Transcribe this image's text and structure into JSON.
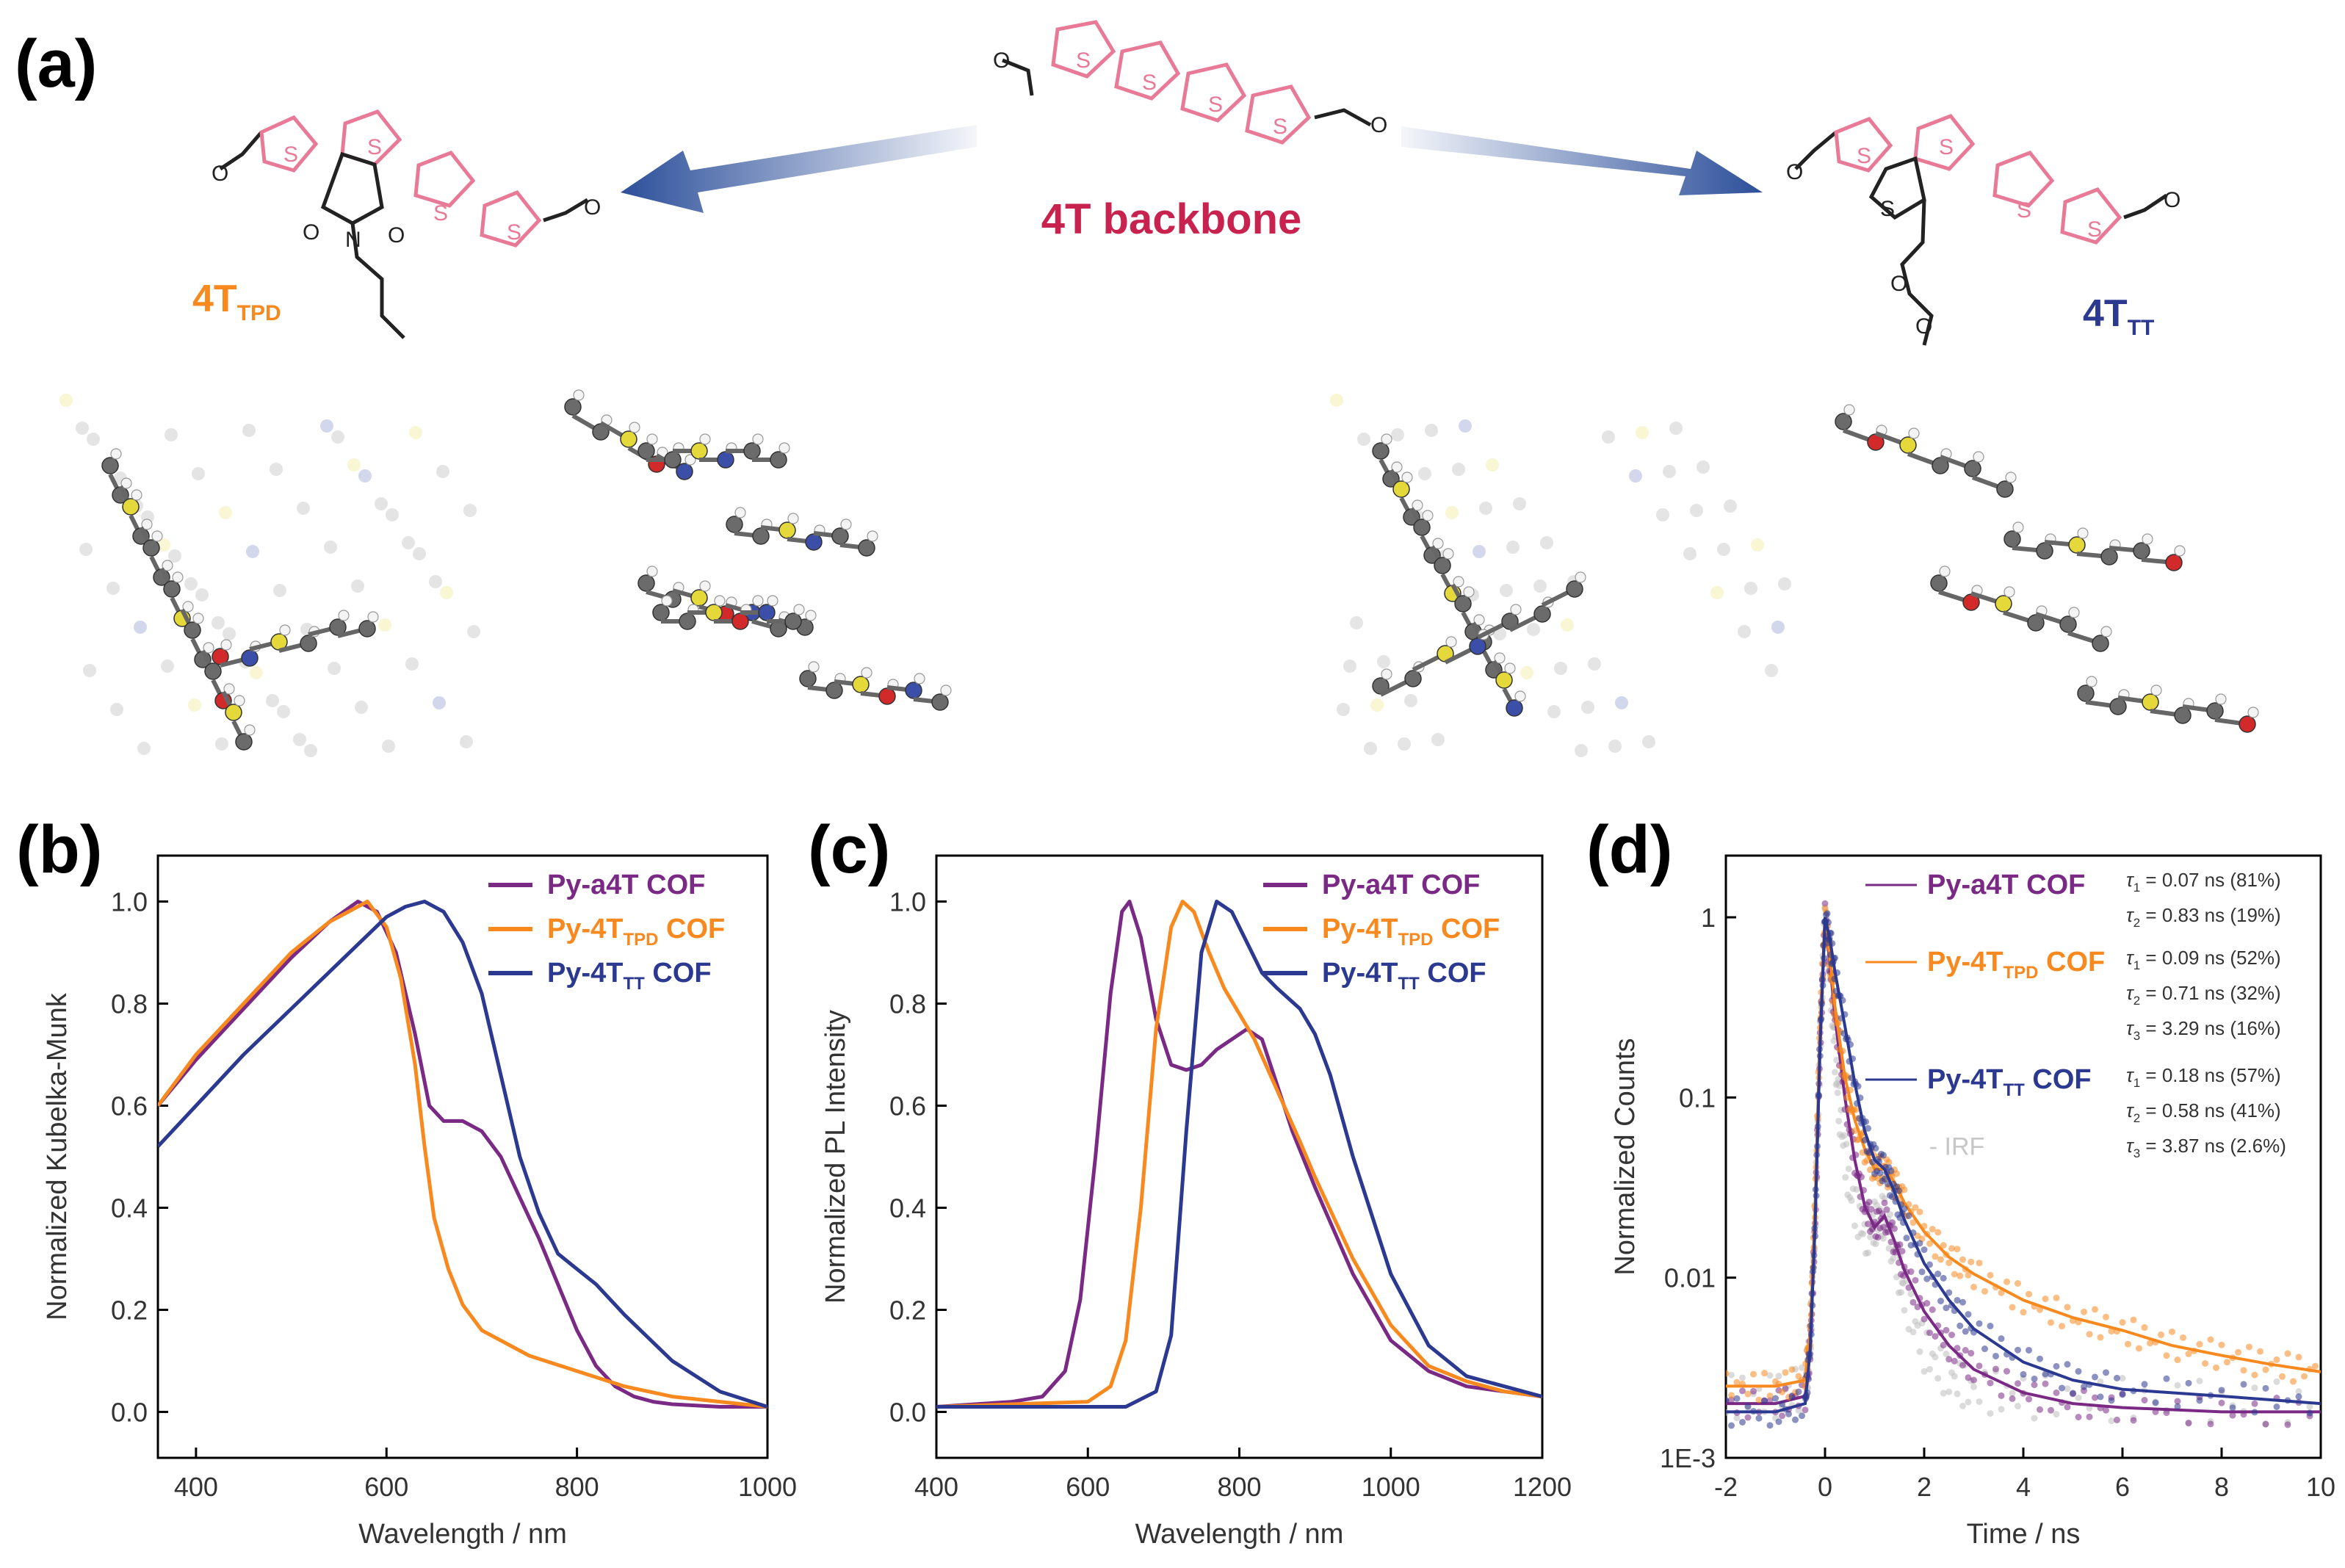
{
  "colors": {
    "purple": "#7a2a85",
    "orange": "#f7891f",
    "navy": "#2b3990",
    "crimson": "#c8234f",
    "pink": "#e87a98",
    "gray": "#bdbdbd",
    "arrow": "#2c4f9a"
  },
  "panel_a": {
    "label": "(a)",
    "backbone_label": "4T backbone",
    "mol_tpd": {
      "base": "4T",
      "sub": "TPD"
    },
    "mol_tt": {
      "base": "4T",
      "sub": "TT"
    },
    "atom_s": "S",
    "atom_n": "N",
    "atom_o": "O"
  },
  "chart_data": [
    {
      "panel": "(b)",
      "type": "line",
      "xlabel": "Wavelength / nm",
      "ylabel": "Normalized Kubelka-Munk",
      "xlim": [
        360,
        1000
      ],
      "ylim": [
        -0.09,
        1.09
      ],
      "xticks": [
        400,
        600,
        800,
        1000
      ],
      "yticks": [
        0.0,
        0.2,
        0.4,
        0.6,
        0.8,
        1.0
      ],
      "ytick_labels": [
        "0.0",
        "0.2",
        "0.4",
        "0.6",
        "0.8",
        "1.0"
      ],
      "legend": [
        {
          "base": "Py-a4T",
          "sub": "",
          "tail": " COF",
          "color": "#7a2a85"
        },
        {
          "base": "Py-4T",
          "sub": "TPD",
          "tail": " COF",
          "color": "#f7891f"
        },
        {
          "base": "Py-4T",
          "sub": "TT",
          "tail": " COF",
          "color": "#2b3990"
        }
      ],
      "series": [
        {
          "name": "Py-a4T COF",
          "color": "#7a2a85",
          "x": [
            360,
            400,
            450,
            500,
            540,
            570,
            590,
            610,
            630,
            645,
            660,
            680,
            700,
            720,
            740,
            760,
            780,
            800,
            820,
            840,
            860,
            880,
            900,
            950,
            1000
          ],
          "y": [
            0.6,
            0.69,
            0.79,
            0.89,
            0.96,
            1.0,
            0.98,
            0.9,
            0.74,
            0.6,
            0.57,
            0.57,
            0.55,
            0.5,
            0.42,
            0.34,
            0.25,
            0.16,
            0.09,
            0.05,
            0.03,
            0.02,
            0.015,
            0.01,
            0.01
          ]
        },
        {
          "name": "Py-4TTPD COF",
          "color": "#f7891f",
          "x": [
            360,
            400,
            450,
            500,
            540,
            570,
            580,
            600,
            615,
            630,
            640,
            650,
            665,
            680,
            700,
            750,
            800,
            850,
            900,
            950,
            1000
          ],
          "y": [
            0.6,
            0.7,
            0.8,
            0.9,
            0.96,
            0.99,
            1.0,
            0.95,
            0.85,
            0.68,
            0.52,
            0.38,
            0.28,
            0.21,
            0.16,
            0.11,
            0.08,
            0.05,
            0.03,
            0.02,
            0.01
          ]
        },
        {
          "name": "Py-4TTT COF",
          "color": "#2b3990",
          "x": [
            360,
            400,
            450,
            500,
            550,
            600,
            620,
            640,
            660,
            680,
            700,
            720,
            740,
            760,
            780,
            800,
            820,
            850,
            900,
            950,
            1000
          ],
          "y": [
            0.52,
            0.6,
            0.7,
            0.79,
            0.88,
            0.97,
            0.99,
            1.0,
            0.98,
            0.92,
            0.82,
            0.66,
            0.5,
            0.39,
            0.31,
            0.28,
            0.25,
            0.19,
            0.1,
            0.04,
            0.01
          ]
        }
      ]
    },
    {
      "panel": "(c)",
      "type": "line",
      "xlabel": "Wavelength / nm",
      "ylabel": "Normalized PL Intensity",
      "xlim": [
        400,
        1200
      ],
      "ylim": [
        -0.09,
        1.09
      ],
      "xticks": [
        400,
        600,
        800,
        1000,
        1200
      ],
      "yticks": [
        0.0,
        0.2,
        0.4,
        0.6,
        0.8,
        1.0
      ],
      "ytick_labels": [
        "0.0",
        "0.2",
        "0.4",
        "0.6",
        "0.8",
        "1.0"
      ],
      "legend": [
        {
          "base": "Py-a4T",
          "sub": "",
          "tail": " COF",
          "color": "#7a2a85"
        },
        {
          "base": "Py-4T",
          "sub": "TPD",
          "tail": " COF",
          "color": "#f7891f"
        },
        {
          "base": "Py-4T",
          "sub": "TT",
          "tail": " COF",
          "color": "#2b3990"
        }
      ],
      "series": [
        {
          "name": "Py-a4T COF",
          "color": "#7a2a85",
          "x": [
            400,
            500,
            540,
            570,
            590,
            610,
            630,
            645,
            655,
            670,
            690,
            710,
            730,
            750,
            770,
            790,
            810,
            830,
            850,
            870,
            900,
            950,
            1000,
            1050,
            1100,
            1150,
            1200
          ],
          "y": [
            0.01,
            0.02,
            0.03,
            0.08,
            0.22,
            0.5,
            0.82,
            0.98,
            1.0,
            0.93,
            0.77,
            0.68,
            0.67,
            0.68,
            0.71,
            0.73,
            0.75,
            0.73,
            0.64,
            0.55,
            0.44,
            0.27,
            0.14,
            0.08,
            0.05,
            0.04,
            0.03
          ]
        },
        {
          "name": "Py-4TTPD COF",
          "color": "#f7891f",
          "x": [
            400,
            600,
            630,
            650,
            670,
            690,
            710,
            725,
            740,
            760,
            780,
            800,
            820,
            850,
            880,
            900,
            950,
            1000,
            1050,
            1100,
            1150,
            1200
          ],
          "y": [
            0.01,
            0.02,
            0.05,
            0.14,
            0.4,
            0.75,
            0.95,
            1.0,
            0.98,
            0.9,
            0.83,
            0.78,
            0.73,
            0.63,
            0.53,
            0.46,
            0.3,
            0.17,
            0.09,
            0.06,
            0.04,
            0.03
          ]
        },
        {
          "name": "Py-4TTT COF",
          "color": "#2b3990",
          "x": [
            400,
            650,
            690,
            710,
            730,
            750,
            770,
            790,
            810,
            830,
            850,
            880,
            900,
            920,
            950,
            1000,
            1050,
            1100,
            1150,
            1200
          ],
          "y": [
            0.01,
            0.01,
            0.04,
            0.15,
            0.55,
            0.9,
            1.0,
            0.98,
            0.92,
            0.86,
            0.83,
            0.79,
            0.74,
            0.66,
            0.5,
            0.27,
            0.13,
            0.07,
            0.05,
            0.03
          ]
        }
      ]
    },
    {
      "panel": "(d)",
      "type": "line",
      "yscale": "log",
      "xlabel": "Time / ns",
      "ylabel": "Normalized Counts",
      "xlim": [
        -2,
        10
      ],
      "ylim": [
        0.001,
        2.2
      ],
      "xticks": [
        -2,
        0,
        2,
        4,
        6,
        8,
        10
      ],
      "yticks": [
        0.001,
        0.01,
        0.1,
        1
      ],
      "ytick_labels": [
        "1E-3",
        "0.01",
        "0.1",
        "1"
      ],
      "legend": [
        {
          "base": "Py-a4T",
          "sub": "",
          "tail": " COF",
          "color": "#7a2a85"
        },
        {
          "base": "Py-4T",
          "sub": "TPD",
          "tail": " COF",
          "color": "#f7891f"
        },
        {
          "base": "Py-4T",
          "sub": "TT",
          "tail": " COF",
          "color": "#2b3990"
        }
      ],
      "irf_label": "IRF",
      "lifetimes": [
        {
          "color": "#7a2a85",
          "rows": [
            {
              "sub": "1",
              "text": " = 0.07 ns (81%)"
            },
            {
              "sub": "2",
              "text": " = 0.83 ns (19%)"
            }
          ]
        },
        {
          "color": "#f7891f",
          "rows": [
            {
              "sub": "1",
              "text": " = 0.09 ns (52%)"
            },
            {
              "sub": "2",
              "text": " = 0.71 ns (32%)"
            },
            {
              "sub": "3",
              "text": " = 3.29 ns (16%)"
            }
          ]
        },
        {
          "color": "#2b3990",
          "rows": [
            {
              "sub": "1",
              "text": " = 0.18 ns (57%)"
            },
            {
              "sub": "2",
              "text": " = 0.58 ns (41%)"
            },
            {
              "sub": "3",
              "text": " = 3.87 ns (2.6%)"
            }
          ]
        }
      ],
      "series": [
        {
          "name": "IRF",
          "color": "#bdbdbd",
          "x": [
            -2,
            -1,
            -0.4,
            -0.3,
            -0.2,
            -0.1,
            0,
            0.1,
            0.2,
            0.3,
            0.5,
            0.8,
            1.0,
            1.2,
            1.4,
            1.6,
            2.0,
            2.5,
            3,
            4,
            6,
            8,
            10
          ],
          "y": [
            0.0022,
            0.0022,
            0.0025,
            0.004,
            0.02,
            0.2,
            1.0,
            0.5,
            0.18,
            0.08,
            0.03,
            0.017,
            0.02,
            0.022,
            0.014,
            0.008,
            0.004,
            0.0028,
            0.0024,
            0.0022,
            0.0021,
            0.002,
            0.002
          ]
        },
        {
          "name": "Py-a4T COF",
          "color": "#7a2a85",
          "x": [
            -2,
            -1,
            -0.4,
            -0.3,
            -0.2,
            -0.1,
            0,
            0.1,
            0.2,
            0.4,
            0.6,
            0.8,
            1.0,
            1.2,
            1.4,
            1.6,
            2.0,
            2.5,
            3,
            4,
            5,
            6,
            8,
            10
          ],
          "y": [
            0.002,
            0.002,
            0.0022,
            0.004,
            0.02,
            0.2,
            1.0,
            0.55,
            0.28,
            0.1,
            0.045,
            0.025,
            0.019,
            0.022,
            0.016,
            0.011,
            0.0065,
            0.0042,
            0.0031,
            0.0023,
            0.002,
            0.0019,
            0.0018,
            0.0018
          ]
        },
        {
          "name": "Py-4TTPD COF",
          "color": "#f7891f",
          "x": [
            -2,
            -1,
            -0.4,
            -0.3,
            -0.2,
            -0.1,
            0,
            0.1,
            0.2,
            0.4,
            0.6,
            0.8,
            1.0,
            1.2,
            1.4,
            1.6,
            2.0,
            2.5,
            3,
            4,
            5,
            6,
            7,
            8,
            9,
            10
          ],
          "y": [
            0.0025,
            0.0025,
            0.0027,
            0.005,
            0.025,
            0.25,
            1.0,
            0.6,
            0.32,
            0.13,
            0.075,
            0.052,
            0.04,
            0.04,
            0.034,
            0.026,
            0.018,
            0.013,
            0.0105,
            0.0075,
            0.006,
            0.0051,
            0.0042,
            0.0037,
            0.0033,
            0.003
          ]
        },
        {
          "name": "Py-4TTT COF",
          "color": "#2b3990",
          "x": [
            -2,
            -1,
            -0.4,
            -0.3,
            -0.2,
            -0.1,
            0,
            0.1,
            0.2,
            0.4,
            0.6,
            0.8,
            1.0,
            1.2,
            1.4,
            1.6,
            2.0,
            2.5,
            3,
            4,
            5,
            6,
            8,
            10
          ],
          "y": [
            0.0018,
            0.0018,
            0.002,
            0.004,
            0.02,
            0.2,
            1.0,
            0.75,
            0.5,
            0.25,
            0.12,
            0.065,
            0.045,
            0.04,
            0.03,
            0.021,
            0.012,
            0.0075,
            0.0052,
            0.0034,
            0.0027,
            0.0024,
            0.0022,
            0.002
          ]
        }
      ]
    }
  ]
}
